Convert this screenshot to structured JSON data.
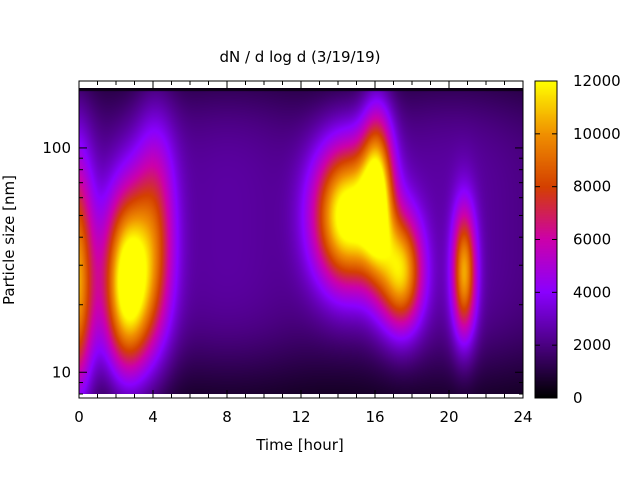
{
  "chart_data": {
    "type": "heatmap",
    "title": "dN / d log d (3/19/19)",
    "xlabel": "Time [hour]",
    "ylabel": "Particle size [nm]",
    "x_range": [
      0,
      24
    ],
    "x_ticks": [
      0,
      4,
      8,
      12,
      16,
      20,
      24
    ],
    "y_scale": "log",
    "y_range": [
      8,
      185
    ],
    "y_ticks": [
      10,
      100
    ],
    "colorbar": {
      "range": [
        0,
        12000
      ],
      "ticks": [
        0,
        2000,
        4000,
        6000,
        8000,
        10000,
        12000
      ],
      "colormap": [
        "#000000",
        "#4b0082",
        "#8a00ff",
        "#cc00aa",
        "#d44000",
        "#f09000",
        "#ffff00"
      ]
    },
    "grid": false,
    "background_level": 2400,
    "top_band": {
      "from_size": 180,
      "value": 300
    },
    "blobs": [
      {
        "time": -0.2,
        "size": 25,
        "peak": 8600,
        "time_width": 0.7,
        "size_width": 0.38
      },
      {
        "time": 2.6,
        "size": 25,
        "peak": 11400,
        "time_width": 0.9,
        "size_width": 0.28
      },
      {
        "time": 4.1,
        "size": 40,
        "peak": 5200,
        "time_width": 0.8,
        "size_width": 0.35
      },
      {
        "time": 14.5,
        "size": 50,
        "peak": 11200,
        "time_width": 1.3,
        "size_width": 0.22
      },
      {
        "time": 16.1,
        "size": 65,
        "peak": 8200,
        "time_width": 0.6,
        "size_width": 0.25
      },
      {
        "time": 17.4,
        "size": 28,
        "peak": 8600,
        "time_width": 0.8,
        "size_width": 0.18
      },
      {
        "time": 20.8,
        "size": 28,
        "peak": 8000,
        "time_width": 0.45,
        "size_width": 0.2
      }
    ]
  }
}
